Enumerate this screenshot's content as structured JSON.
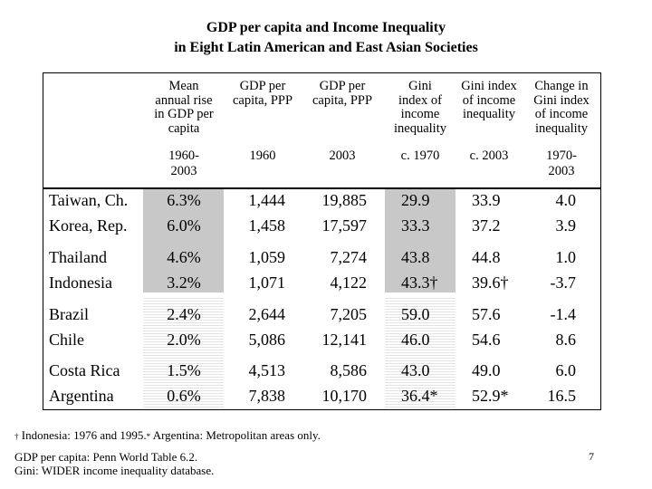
{
  "chart_data": {
    "type": "table",
    "title_line1": "GDP per capita and Income Inequality",
    "title_line2": "in Eight Latin American and East Asian Societies",
    "columns": [
      {
        "label_lines": [
          "Mean",
          "annual rise",
          "in GDP per",
          "capita"
        ],
        "period_lines": [
          "1960-",
          "2003"
        ]
      },
      {
        "label_lines": [
          "GDP per",
          "capita, PPP"
        ],
        "period_lines": [
          "1960"
        ]
      },
      {
        "label_lines": [
          "GDP per",
          "capita, PPP"
        ],
        "period_lines": [
          "2003"
        ]
      },
      {
        "label_lines": [
          "Gini",
          "index of",
          "income",
          "inequality"
        ],
        "period_lines": [
          "c. 1970"
        ]
      },
      {
        "label_lines": [
          "Gini index",
          "of income",
          "inequality"
        ],
        "period_lines": [
          "c. 2003"
        ]
      },
      {
        "label_lines": [
          "Change in",
          "Gini index",
          "of income",
          "inequality"
        ],
        "period_lines": [
          "1970-",
          "2003"
        ]
      }
    ],
    "rows": [
      {
        "country": "Taiwan, Ch.",
        "values": [
          "6.3%",
          "1,444",
          "19,885",
          "29.9",
          "33.9",
          "4.0"
        ]
      },
      {
        "country": "Korea, Rep.",
        "values": [
          "6.0%",
          "1,458",
          "17,597",
          "33.3",
          "37.2",
          "3.9"
        ]
      },
      {
        "country": "Thailand",
        "values": [
          "4.6%",
          "1,059",
          "7,274",
          "43.8",
          "44.8",
          "1.0"
        ]
      },
      {
        "country": "Indonesia",
        "values": [
          "3.2%",
          "1,071",
          "4,122",
          "43.3†",
          "39.6†",
          "-3.7"
        ]
      },
      {
        "country": "Brazil",
        "values": [
          "2.4%",
          "2,644",
          "7,205",
          "59.0",
          "57.6",
          "-1.4"
        ]
      },
      {
        "country": "Chile",
        "values": [
          "2.0%",
          "5,086",
          "12,141",
          "46.0",
          "54.6",
          "8.6"
        ]
      },
      {
        "country": "Costa Rica",
        "values": [
          "1.5%",
          "4,513",
          "8,586",
          "43.0",
          "49.0",
          "6.0"
        ]
      },
      {
        "country": "Argentina",
        "values": [
          "0.6%",
          "7,838",
          "10,170",
          "36.4*",
          "52.9*",
          "16.5"
        ]
      }
    ]
  },
  "footnotes": {
    "dagger_symbol": "†",
    "dagger_text": " Indonesia: 1976 and 1995.",
    "star_symbol": "*",
    "star_text": " Argentina: Metropolitan areas only.",
    "source1": "GDP per capita: Penn World Table 6.2.",
    "source2": "Gini: WIDER income inequality database."
  },
  "page_number": "7",
  "colors": {
    "shade": "#c8c8c8",
    "hatch": "#e3e3e3"
  }
}
